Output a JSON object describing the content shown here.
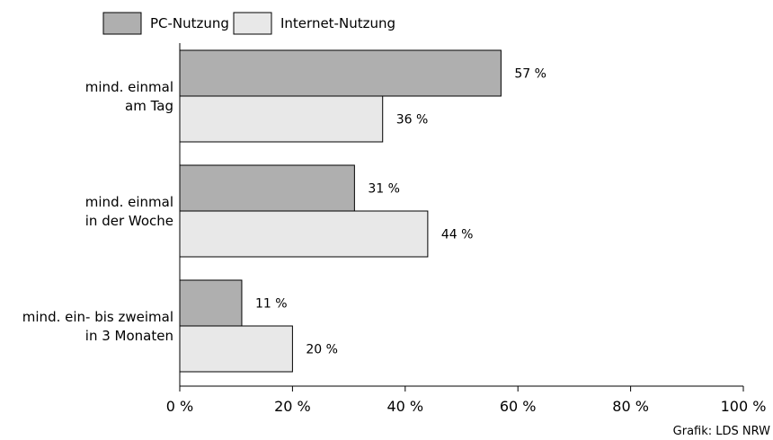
{
  "chart_data": {
    "type": "bar",
    "orientation": "horizontal",
    "categories": [
      [
        "mind. einmal",
        "am Tag"
      ],
      [
        "mind. einmal",
        "in der Woche"
      ],
      [
        "mind. ein- bis zweimal",
        "in 3 Monaten"
      ]
    ],
    "series": [
      {
        "name": "PC-Nutzung",
        "color": "#afafaf",
        "values": [
          57,
          31,
          11
        ],
        "value_labels": [
          "57 %",
          "31 %",
          "11 %"
        ]
      },
      {
        "name": "Internet-Nutzung",
        "color": "#e8e8e8",
        "values": [
          36,
          44,
          20
        ],
        "value_labels": [
          "36 %",
          "44 %",
          "20 %"
        ]
      }
    ],
    "xlim": [
      0,
      100
    ],
    "xticks": [
      0,
      20,
      40,
      60,
      80,
      100
    ],
    "xtick_labels": [
      "0 %",
      "20 %",
      "40 %",
      "60 %",
      "80 %",
      "100 %"
    ],
    "grid": false,
    "legend_position": "top-left",
    "source": "Grafik: LDS NRW"
  }
}
